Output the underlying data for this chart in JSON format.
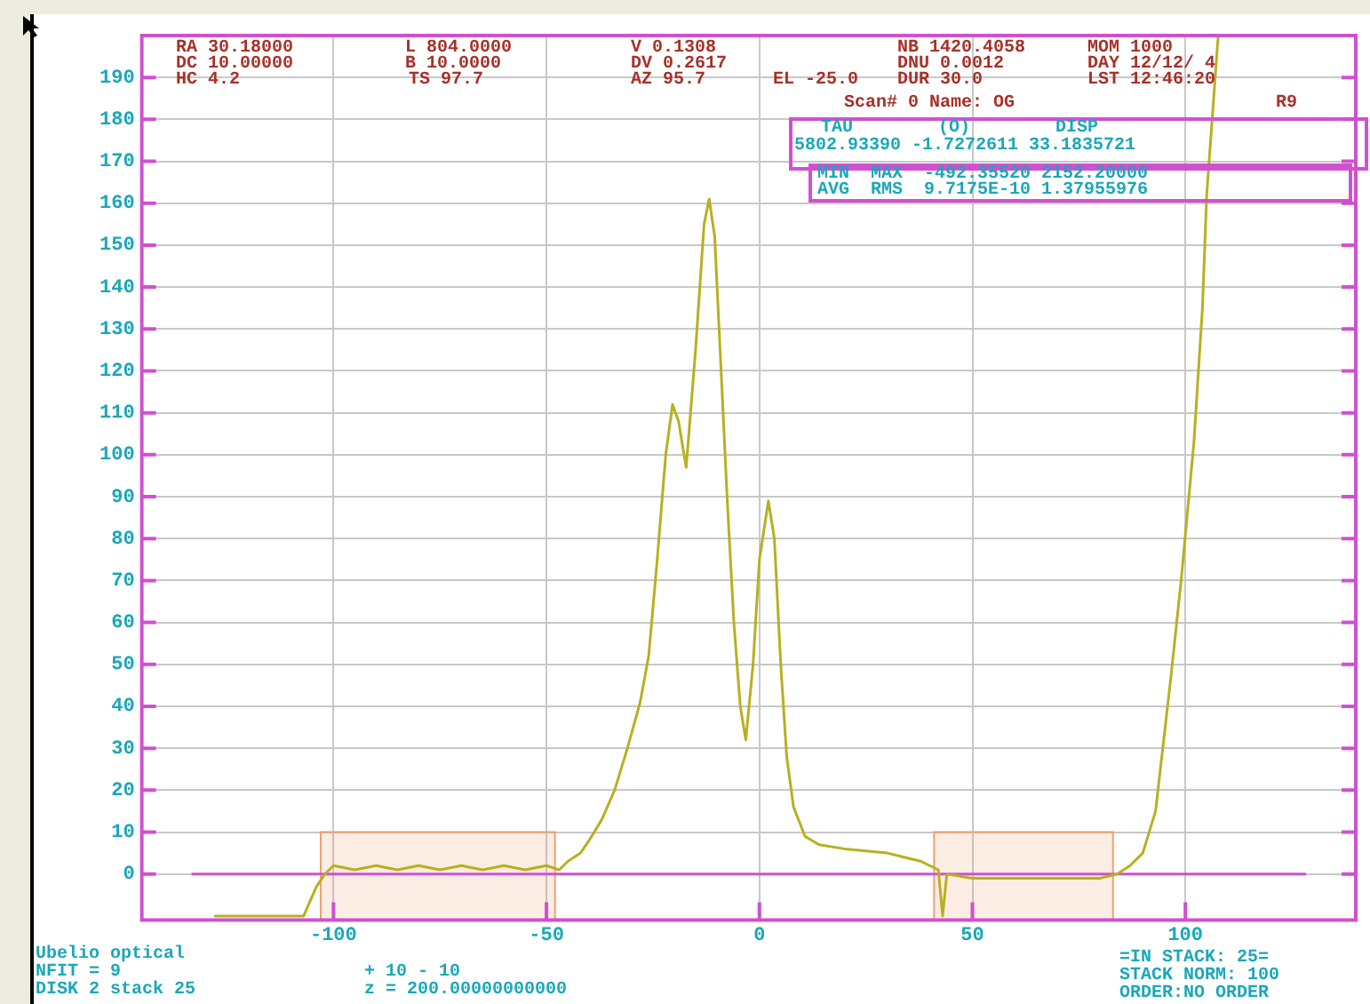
{
  "chart_data": {
    "type": "line",
    "x": [
      -128,
      -107,
      -104,
      -102,
      -100,
      -95,
      -90,
      -85,
      -80,
      -75,
      -70,
      -65,
      -60,
      -55,
      -50,
      -47,
      -45,
      -42,
      -40,
      -37,
      -34,
      -31,
      -28,
      -26,
      -24,
      -22,
      -20.4,
      -19,
      -17.2,
      -15,
      -13,
      -11.8,
      -10.5,
      -9,
      -7.5,
      -6,
      -4.5,
      -3.2,
      -1.5,
      0,
      2.1,
      3.5,
      5,
      6.4,
      8,
      10.7,
      14,
      20,
      30,
      38,
      42,
      43,
      44,
      50,
      60,
      70,
      80,
      84,
      87,
      90,
      93,
      96.6,
      99,
      102,
      104,
      105,
      107.7
    ],
    "series": [
      {
        "color": "#b8b020",
        "values": [
          -10,
          -10,
          -3,
          0,
          2,
          1,
          2,
          1,
          2,
          1,
          2,
          1,
          2,
          1,
          2,
          1,
          3,
          5,
          8,
          13,
          20,
          30,
          41,
          52,
          75,
          100,
          112,
          108,
          97,
          125,
          155,
          161,
          152,
          120,
          88,
          60,
          40,
          32,
          50,
          75,
          89,
          80,
          50,
          28,
          16,
          9,
          7,
          6,
          5,
          3,
          1,
          -10,
          0,
          -1,
          -1,
          -1,
          -1,
          0,
          2,
          5,
          15,
          47,
          70,
          103,
          135,
          162,
          200
        ]
      }
    ],
    "xlim": [
      -145,
      140
    ],
    "xticks": [
      -100,
      -50,
      0,
      50,
      100
    ],
    "ylim": [
      -11,
      200
    ],
    "yticks": [
      0,
      10,
      20,
      30,
      40,
      50,
      60,
      70,
      80,
      90,
      100,
      110,
      120,
      130,
      140,
      150,
      160,
      170,
      180,
      190
    ],
    "grid": true,
    "legend": false,
    "marker": "none",
    "line_style": "solid",
    "ref_lines": [
      {
        "axis": "y",
        "value": 0,
        "color": "#d050d0"
      }
    ],
    "bands": [
      {
        "axis": "x",
        "from": -103,
        "to": -48,
        "color": "#f0a070"
      },
      {
        "axis": "x",
        "from": 41,
        "to": 83,
        "color": "#f0a070"
      }
    ],
    "annotations": [
      "RA 30.18000",
      "L 804.0000",
      "V 0.1308",
      "NB 1420.4058",
      "MOM 1000",
      "DC 10.00000",
      "B 10.0000",
      "DV 0.2617",
      "DNU 0.0012",
      "DAY 12/12/ 4",
      "HC 4.2",
      "TS 97.7",
      "AZ 95.7",
      "EL -25.0",
      "DUR 30.0",
      "LST 12:46:20",
      "Scan# 0 Name: OG",
      "R9",
      "TAU        (O)        DISP",
      "5802.93390 -1.7272611 33.1835721",
      "MIN  MAX  -492.35520 2152.20000",
      "AVG  RMS  9.7175E-10 1.37955976",
      "Ubelio optical",
      "NFIT = 9",
      "DISK 2 stack 25",
      "+ 10 - 10",
      "z = 200.00000000000",
      "=IN STACK: 25=",
      "STACK NORM: 100",
      "ORDER:NO ORDER"
    ]
  }
}
